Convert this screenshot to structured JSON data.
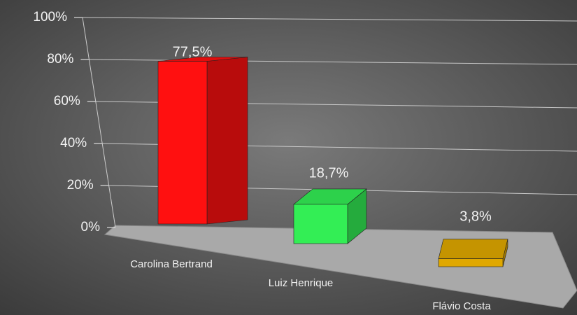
{
  "chart_data": {
    "type": "bar3d",
    "categories": [
      "Carolina Bertrand",
      "Luiz Henrique",
      "Flávio Costa"
    ],
    "values": [
      77.5,
      18.7,
      3.8
    ],
    "value_labels": [
      "77,5%",
      "18,7%",
      "3,8%"
    ],
    "colors": [
      "#ff1010",
      "#33ee55",
      "#e0a800"
    ],
    "ylim": [
      0,
      100
    ],
    "yticks": [
      {
        "value": 0,
        "label": "0%"
      },
      {
        "value": 20,
        "label": "20%"
      },
      {
        "value": 40,
        "label": "40%"
      },
      {
        "value": 60,
        "label": "60%"
      },
      {
        "value": 80,
        "label": "80%"
      },
      {
        "value": 100,
        "label": "100%"
      }
    ],
    "grid": true
  }
}
